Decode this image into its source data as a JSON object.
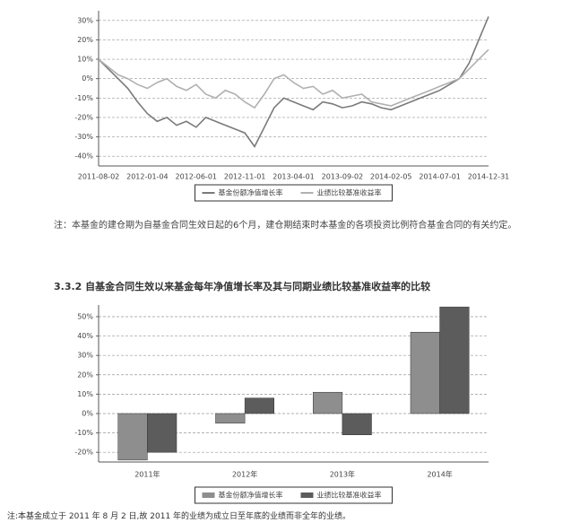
{
  "chart_data": [
    {
      "type": "line",
      "categories": [
        "2011-08-02",
        null,
        null,
        null,
        null,
        "2012-01-04",
        null,
        null,
        null,
        null,
        "2012-06-01",
        null,
        null,
        null,
        null,
        "2012-11-01",
        null,
        null,
        null,
        null,
        "2013-04-01",
        null,
        null,
        null,
        null,
        "2013-09-02",
        null,
        null,
        null,
        null,
        "2014-02-05",
        null,
        null,
        null,
        null,
        "2014-07-01",
        null,
        null,
        null,
        null,
        "2014-12-31"
      ],
      "series": [
        {
          "name": "基金份额净值增长率",
          "color": "#7a7a7a",
          "values": [
            10,
            5,
            0,
            -5,
            -12,
            -18,
            -22,
            -20,
            -24,
            -22,
            -25,
            -20,
            -22,
            -24,
            -26,
            -28,
            -35,
            -25,
            -15,
            -10,
            -12,
            -14,
            -16,
            -12,
            -13,
            -15,
            -14,
            -12,
            -13,
            -15,
            -16,
            -14,
            -12,
            -10,
            -8,
            -6,
            -3,
            0,
            8,
            20,
            32
          ]
        },
        {
          "name": "业绩比较基准收益率",
          "color": "#b0b0b0",
          "values": [
            10,
            6,
            2,
            0,
            -3,
            -5,
            -2,
            0,
            -4,
            -6,
            -3,
            -8,
            -10,
            -6,
            -8,
            -12,
            -15,
            -8,
            0,
            2,
            -2,
            -5,
            -4,
            -8,
            -6,
            -10,
            -9,
            -8,
            -12,
            -13,
            -14,
            -12,
            -10,
            -8,
            -6,
            -4,
            -2,
            0,
            5,
            10,
            15
          ]
        }
      ],
      "ylim": [
        -45,
        35
      ],
      "yticks": [
        {
          "value": 30,
          "label": "30%"
        },
        {
          "value": 20,
          "label": "20%"
        },
        {
          "value": 10,
          "label": "10%"
        },
        {
          "value": 0,
          "label": "0%"
        },
        {
          "value": -10,
          "label": "-10%"
        },
        {
          "value": -20,
          "label": "-20%"
        },
        {
          "value": -30,
          "label": "-30%"
        },
        {
          "value": -40,
          "label": "-40%"
        }
      ],
      "grid": true
    },
    {
      "type": "bar",
      "categories": [
        "2011年",
        "2012年",
        "2013年",
        "2014年"
      ],
      "series": [
        {
          "name": "基金份额净值增长率",
          "color": "#8e8e8e",
          "values": [
            -24,
            -5,
            11,
            42
          ]
        },
        {
          "name": "业绩比较基准收益率",
          "color": "#5c5c5c",
          "values": [
            -20,
            8,
            -11,
            55
          ]
        }
      ],
      "ylim": [
        -25,
        56
      ],
      "yticks": [
        {
          "value": 50,
          "label": "50%"
        },
        {
          "value": 40,
          "label": "40%"
        },
        {
          "value": 30,
          "label": "30%"
        },
        {
          "value": 20,
          "label": "20%"
        },
        {
          "value": 10,
          "label": "10%"
        },
        {
          "value": 0,
          "label": "0%"
        },
        {
          "value": -10,
          "label": "-10%"
        },
        {
          "value": -20,
          "label": "-20%"
        }
      ],
      "grid": true
    }
  ],
  "note": "注：本基金的建仓期为自基金合同生效日起的6个月，建仓期结束时本基金的各项投资比例符合基金合同的有关约定。",
  "heading": "3.3.2 自基金合同生效以来基金每年净值增长率及其与同期业绩比较基准收益率的比较",
  "footnote": "注:本基金成立于 2011 年 8 月 2 日,故 2011 年的业绩为成立日至年底的业绩而非全年的业绩。"
}
